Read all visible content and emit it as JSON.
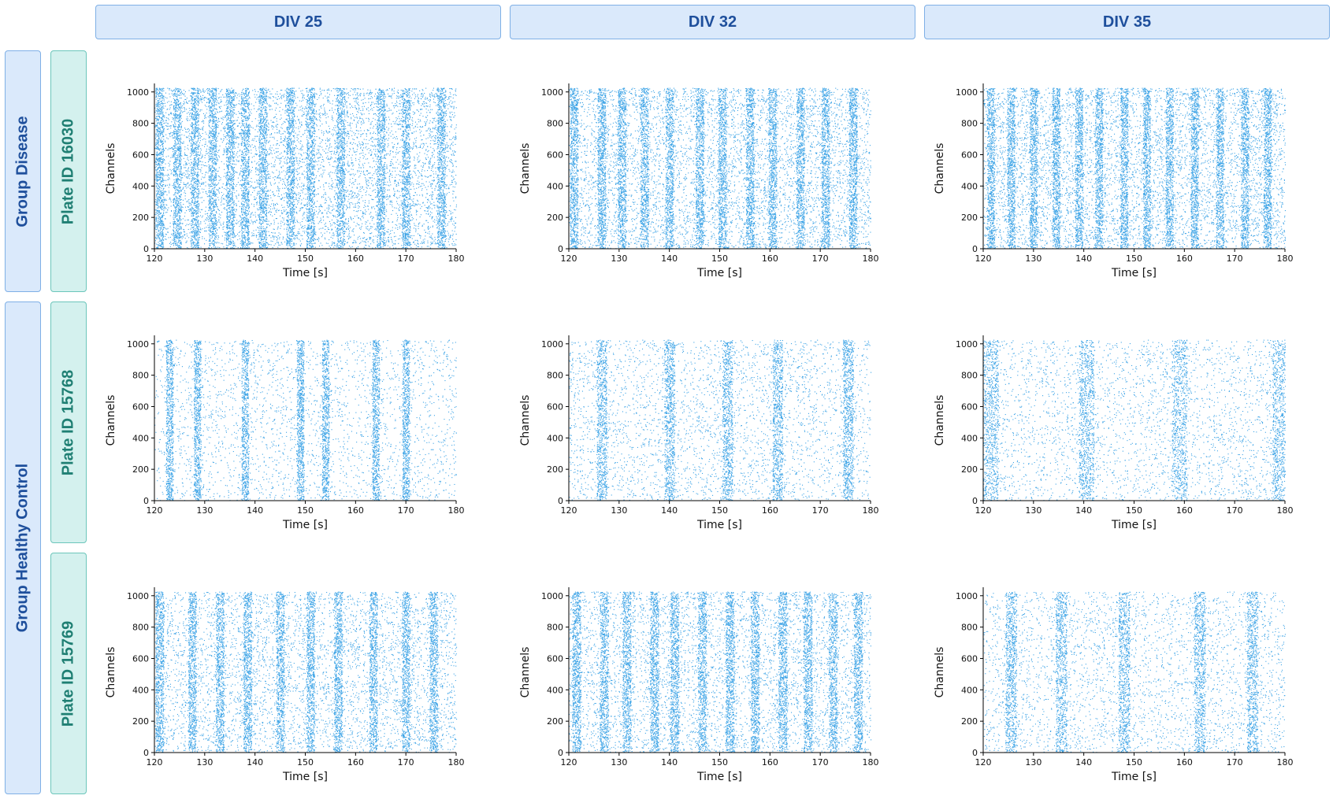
{
  "columns": [
    "DIV 25",
    "DIV 32",
    "DIV 35"
  ],
  "groups": [
    "Group Disease",
    "Group Healthy Control"
  ],
  "plates": [
    "Plate ID 16030",
    "Plate ID 15768",
    "Plate ID 15769"
  ],
  "colors": {
    "spike": "#3ca3e6",
    "column_header_bg": "#dae9fb",
    "column_header_border": "#7fb0e6",
    "column_header_text": "#1e4f9c",
    "plate_header_bg": "#d4f1ee",
    "plate_header_border": "#6cc6bb",
    "plate_header_text": "#1f7f73"
  },
  "chart_data": [
    {
      "type": "scatter",
      "group": "Group Disease",
      "plate": "Plate ID 16030",
      "div": "DIV 25",
      "xlabel": "Time [s]",
      "ylabel": "Channels",
      "xlim": [
        120,
        180
      ],
      "ylim": [
        0,
        1024
      ],
      "xticks": [
        120,
        130,
        140,
        150,
        160,
        170,
        180
      ],
      "yticks": [
        0,
        200,
        400,
        600,
        800,
        1000
      ],
      "burst_times_s": [
        121,
        124.5,
        128,
        131.5,
        135,
        138,
        141.5,
        147,
        151,
        157,
        165,
        170,
        177
      ],
      "burst_width_s": 1.6,
      "background_density": 0.9
    },
    {
      "type": "scatter",
      "group": "Group Disease",
      "plate": "Plate ID 16030",
      "div": "DIV 32",
      "xlabel": "Time [s]",
      "ylabel": "Channels",
      "xlim": [
        120,
        180
      ],
      "ylim": [
        0,
        1024
      ],
      "xticks": [
        120,
        130,
        140,
        150,
        160,
        170,
        180
      ],
      "yticks": [
        0,
        200,
        400,
        600,
        800,
        1000
      ],
      "burst_times_s": [
        121,
        126.5,
        130.5,
        135,
        140,
        146,
        150.5,
        156,
        160.5,
        166,
        171,
        176.5
      ],
      "burst_width_s": 1.6,
      "background_density": 0.75
    },
    {
      "type": "scatter",
      "group": "Group Disease",
      "plate": "Plate ID 16030",
      "div": "DIV 35",
      "xlabel": "Time [s]",
      "ylabel": "Channels",
      "xlim": [
        120,
        180
      ],
      "ylim": [
        0,
        1024
      ],
      "xticks": [
        120,
        130,
        140,
        150,
        160,
        170,
        180
      ],
      "yticks": [
        0,
        200,
        400,
        600,
        800,
        1000
      ],
      "burst_times_s": [
        121.5,
        125.5,
        130,
        134.5,
        139,
        143,
        148,
        152.5,
        157,
        162,
        167,
        172,
        176.5
      ],
      "burst_width_s": 1.5,
      "background_density": 0.8
    },
    {
      "type": "scatter",
      "group": "Group Healthy Control",
      "plate": "Plate ID 15768",
      "div": "DIV 25",
      "xlabel": "Time [s]",
      "ylabel": "Channels",
      "xlim": [
        120,
        180
      ],
      "ylim": [
        0,
        1024
      ],
      "xticks": [
        120,
        130,
        140,
        150,
        160,
        170,
        180
      ],
      "yticks": [
        0,
        200,
        400,
        600,
        800,
        1000
      ],
      "burst_times_s": [
        123,
        128.5,
        138,
        149,
        154,
        164,
        170
      ],
      "burst_width_s": 1.4,
      "background_density": 0.35
    },
    {
      "type": "scatter",
      "group": "Group Healthy Control",
      "plate": "Plate ID 15768",
      "div": "DIV 32",
      "xlabel": "Time [s]",
      "ylabel": "Channels",
      "xlim": [
        120,
        180
      ],
      "ylim": [
        0,
        1024
      ],
      "xticks": [
        120,
        130,
        140,
        150,
        160,
        170,
        180
      ],
      "yticks": [
        0,
        200,
        400,
        600,
        800,
        1000
      ],
      "burst_times_s": [
        126.5,
        140,
        151.5,
        161.5,
        175.5
      ],
      "burst_width_s": 2.0,
      "background_density": 0.45
    },
    {
      "type": "scatter",
      "group": "Group Healthy Control",
      "plate": "Plate ID 15768",
      "div": "DIV 35",
      "xlabel": "Time [s]",
      "ylabel": "Channels",
      "xlim": [
        120,
        180
      ],
      "ylim": [
        0,
        1024
      ],
      "xticks": [
        120,
        130,
        140,
        150,
        160,
        170,
        180
      ],
      "yticks": [
        0,
        200,
        400,
        600,
        800,
        1000
      ],
      "burst_times_s": [
        121.5,
        140.5,
        159,
        179
      ],
      "burst_width_s": 3.0,
      "background_density": 0.4
    },
    {
      "type": "scatter",
      "group": "Group Healthy Control",
      "plate": "Plate ID 15769",
      "div": "DIV 25",
      "xlabel": "Time [s]",
      "ylabel": "Channels",
      "xlim": [
        120,
        180
      ],
      "ylim": [
        0,
        1024
      ],
      "xticks": [
        120,
        130,
        140,
        150,
        160,
        170,
        180
      ],
      "yticks": [
        0,
        200,
        400,
        600,
        800,
        1000
      ],
      "burst_times_s": [
        121,
        127.5,
        133,
        138.5,
        145,
        151,
        156.5,
        163.5,
        170,
        175.5
      ],
      "burst_width_s": 1.6,
      "background_density": 0.6
    },
    {
      "type": "scatter",
      "group": "Group Healthy Control",
      "plate": "Plate ID 15769",
      "div": "DIV 32",
      "xlabel": "Time [s]",
      "ylabel": "Channels",
      "xlim": [
        120,
        180
      ],
      "ylim": [
        0,
        1024
      ],
      "xticks": [
        120,
        130,
        140,
        150,
        160,
        170,
        180
      ],
      "yticks": [
        0,
        200,
        400,
        600,
        800,
        1000
      ],
      "burst_times_s": [
        121.5,
        127,
        131.5,
        137,
        141,
        146.5,
        152,
        157,
        162.5,
        167.5,
        172.5,
        177.5
      ],
      "burst_width_s": 1.7,
      "background_density": 0.6
    },
    {
      "type": "scatter",
      "group": "Group Healthy Control",
      "plate": "Plate ID 15769",
      "div": "DIV 35",
      "xlabel": "Time [s]",
      "ylabel": "Channels",
      "xlim": [
        120,
        180
      ],
      "ylim": [
        0,
        1024
      ],
      "xticks": [
        120,
        130,
        140,
        150,
        160,
        170,
        180
      ],
      "yticks": [
        0,
        200,
        400,
        600,
        800,
        1000
      ],
      "burst_times_s": [
        125.5,
        135.5,
        148,
        163,
        173.5
      ],
      "burst_width_s": 2.2,
      "background_density": 0.45
    }
  ]
}
